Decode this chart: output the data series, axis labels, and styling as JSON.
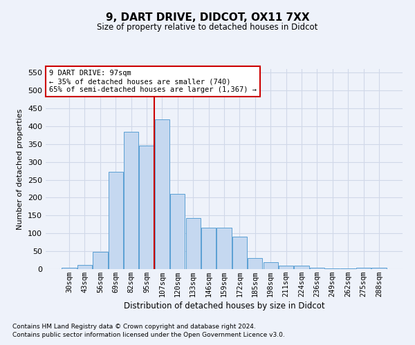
{
  "title": "9, DART DRIVE, DIDCOT, OX11 7XX",
  "subtitle": "Size of property relative to detached houses in Didcot",
  "xlabel": "Distribution of detached houses by size in Didcot",
  "ylabel": "Number of detached properties",
  "categories": [
    "30sqm",
    "43sqm",
    "56sqm",
    "69sqm",
    "82sqm",
    "95sqm",
    "107sqm",
    "120sqm",
    "133sqm",
    "146sqm",
    "159sqm",
    "172sqm",
    "185sqm",
    "198sqm",
    "211sqm",
    "224sqm",
    "236sqm",
    "249sqm",
    "262sqm",
    "275sqm",
    "288sqm"
  ],
  "values": [
    4,
    12,
    48,
    272,
    385,
    345,
    420,
    210,
    143,
    115,
    115,
    90,
    30,
    20,
    10,
    10,
    4,
    2,
    1,
    3,
    3
  ],
  "bar_color": "#c5d8f0",
  "bar_edge_color": "#5a9fd4",
  "vline_color": "#cc0000",
  "annotation_text": "9 DART DRIVE: 97sqm\n← 35% of detached houses are smaller (740)\n65% of semi-detached houses are larger (1,367) →",
  "annotation_box_color": "#ffffff",
  "annotation_box_edge": "#cc0000",
  "footnote1": "Contains HM Land Registry data © Crown copyright and database right 2024.",
  "footnote2": "Contains public sector information licensed under the Open Government Licence v3.0.",
  "background_color": "#eef2fa",
  "grid_color": "#d0d8e8",
  "ylim": [
    0,
    560
  ],
  "yticks": [
    0,
    50,
    100,
    150,
    200,
    250,
    300,
    350,
    400,
    450,
    500,
    550
  ]
}
